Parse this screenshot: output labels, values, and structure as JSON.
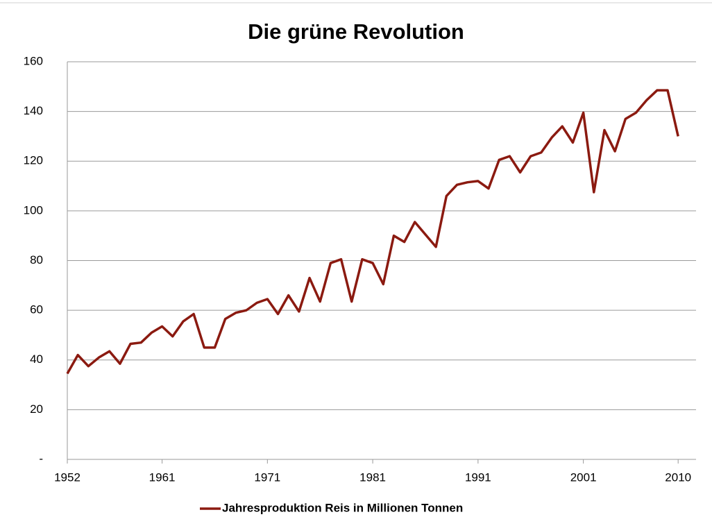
{
  "chart_data": {
    "type": "line",
    "title": "Die grüne Revolution",
    "x": [
      1952,
      1953,
      1954,
      1955,
      1956,
      1957,
      1958,
      1959,
      1960,
      1961,
      1962,
      1963,
      1964,
      1965,
      1966,
      1967,
      1968,
      1969,
      1970,
      1971,
      1972,
      1973,
      1974,
      1975,
      1976,
      1977,
      1978,
      1979,
      1980,
      1981,
      1982,
      1983,
      1984,
      1985,
      1986,
      1987,
      1988,
      1989,
      1990,
      1991,
      1992,
      1993,
      1994,
      1995,
      1996,
      1997,
      1998,
      1999,
      2000,
      2001,
      2002,
      2003,
      2004,
      2005,
      2006,
      2007,
      2008,
      2009,
      2010
    ],
    "series": [
      {
        "name": "Jahresproduktion Reis in Millionen Tonnen",
        "color": "#8b1a10",
        "values": [
          34.5,
          42,
          37.5,
          41,
          43.5,
          38.5,
          46.5,
          47,
          51,
          53.5,
          49.5,
          55.5,
          58.5,
          45,
          45,
          56.5,
          59,
          60,
          63,
          64.5,
          58.5,
          66,
          59.5,
          73,
          63.5,
          79,
          80.5,
          63.5,
          80.5,
          79,
          70.5,
          90,
          87.5,
          95.5,
          90.5,
          85.5,
          106,
          110.5,
          111.5,
          112,
          109,
          120.5,
          122,
          115.5,
          122,
          123.5,
          129.5,
          134,
          127.5,
          139.5,
          107.5,
          132.5,
          124,
          137,
          139.5,
          144.5,
          148.5,
          148.5,
          130
        ]
      }
    ],
    "xlim": [
      1952,
      2011.7
    ],
    "xticks": [
      1952,
      1961,
      1971,
      1981,
      1991,
      2001,
      2010
    ],
    "ylim": [
      0,
      160
    ],
    "yticks": [
      {
        "value": 0,
        "label": "-"
      },
      20,
      40,
      60,
      80,
      100,
      120,
      140,
      160
    ],
    "grid": true,
    "legend": "bottom"
  }
}
